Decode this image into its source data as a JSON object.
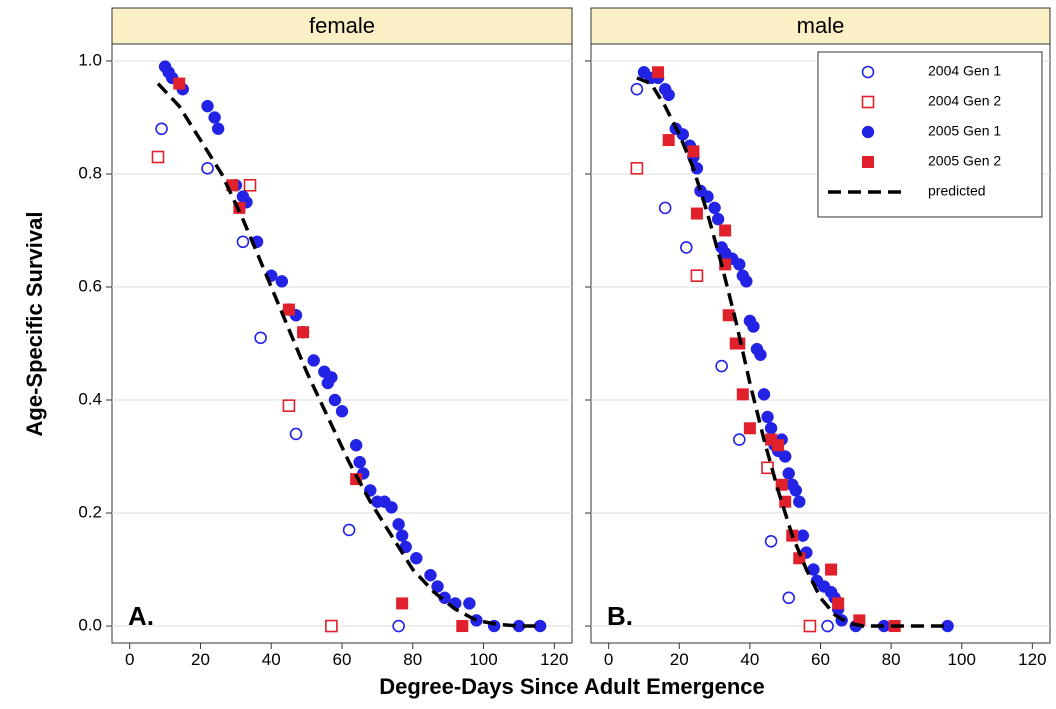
{
  "chart_data": {
    "type": "scatter",
    "ylabel": "Age-Specific Survival",
    "xlabel": "Degree-Days Since Adult Emergence",
    "xlim": [
      -5,
      125
    ],
    "ylim": [
      -0.03,
      1.03
    ],
    "x_ticks": [
      "0",
      "20",
      "40",
      "60",
      "80",
      "100",
      "120"
    ],
    "y_ticks": [
      "0.0",
      "0.2",
      "0.4",
      "0.6",
      "0.8",
      "1.0"
    ],
    "x_tick_values": [
      0,
      20,
      40,
      60,
      80,
      100,
      120
    ],
    "y_tick_values": [
      0,
      0.2,
      0.4,
      0.6,
      0.8,
      1.0
    ],
    "grid": "horizontal",
    "legend_position": "top-right",
    "legend": [
      {
        "label": "2004 Gen 1",
        "marker": "open-circle",
        "color": "#2323e6"
      },
      {
        "label": "2004 Gen 2",
        "marker": "open-square",
        "color": "#e0202a"
      },
      {
        "label": "2005 Gen 1",
        "marker": "filled-circle",
        "color": "#2323e6"
      },
      {
        "label": "2005 Gen 2",
        "marker": "filled-square",
        "color": "#e0202a"
      },
      {
        "label": "predicted",
        "marker": "dashed-line",
        "color": "#000000"
      }
    ],
    "colors": {
      "blue": "#2323e6",
      "red": "#e0202a",
      "strip_bg": "#fbf0c5"
    },
    "panels": [
      {
        "strip": "female",
        "label": "A.",
        "series": [
          {
            "name": "2004 Gen 1",
            "points": [
              [
                9,
                0.88
              ],
              [
                22,
                0.81
              ],
              [
                32,
                0.68
              ],
              [
                37,
                0.51
              ],
              [
                47,
                0.34
              ],
              [
                62,
                0.17
              ],
              [
                76,
                0.0
              ]
            ]
          },
          {
            "name": "2004 Gen 2",
            "points": [
              [
                8,
                0.83
              ],
              [
                34,
                0.78
              ],
              [
                45,
                0.39
              ],
              [
                57,
                0.0
              ]
            ]
          },
          {
            "name": "2005 Gen 1",
            "points": [
              [
                10,
                0.99
              ],
              [
                11,
                0.98
              ],
              [
                12,
                0.97
              ],
              [
                15,
                0.95
              ],
              [
                22,
                0.92
              ],
              [
                24,
                0.9
              ],
              [
                25,
                0.88
              ],
              [
                30,
                0.78
              ],
              [
                32,
                0.76
              ],
              [
                33,
                0.75
              ],
              [
                36,
                0.68
              ],
              [
                40,
                0.62
              ],
              [
                43,
                0.61
              ],
              [
                45,
                0.56
              ],
              [
                47,
                0.55
              ],
              [
                49,
                0.52
              ],
              [
                52,
                0.47
              ],
              [
                55,
                0.45
              ],
              [
                56,
                0.43
              ],
              [
                57,
                0.44
              ],
              [
                58,
                0.4
              ],
              [
                60,
                0.38
              ],
              [
                64,
                0.32
              ],
              [
                65,
                0.29
              ],
              [
                66,
                0.27
              ],
              [
                68,
                0.24
              ],
              [
                70,
                0.22
              ],
              [
                72,
                0.22
              ],
              [
                74,
                0.21
              ],
              [
                76,
                0.18
              ],
              [
                77,
                0.16
              ],
              [
                78,
                0.14
              ],
              [
                81,
                0.12
              ],
              [
                85,
                0.09
              ],
              [
                87,
                0.07
              ],
              [
                89,
                0.05
              ],
              [
                92,
                0.04
              ],
              [
                96,
                0.04
              ],
              [
                98,
                0.01
              ],
              [
                103,
                0.0
              ],
              [
                110,
                0.0
              ],
              [
                116,
                0.0
              ]
            ]
          },
          {
            "name": "2005 Gen 2",
            "points": [
              [
                14,
                0.96
              ],
              [
                29,
                0.78
              ],
              [
                31,
                0.74
              ],
              [
                45,
                0.56
              ],
              [
                49,
                0.52
              ],
              [
                64,
                0.26
              ],
              [
                77,
                0.04
              ],
              [
                94,
                0.0
              ]
            ]
          },
          {
            "name": "predicted",
            "points": [
              [
                8,
                0.96
              ],
              [
                14,
                0.92
              ],
              [
                20,
                0.86
              ],
              [
                26,
                0.8
              ],
              [
                32,
                0.72
              ],
              [
                38,
                0.63
              ],
              [
                44,
                0.54
              ],
              [
                50,
                0.45
              ],
              [
                56,
                0.37
              ],
              [
                62,
                0.29
              ],
              [
                68,
                0.22
              ],
              [
                74,
                0.16
              ],
              [
                80,
                0.1
              ],
              [
                86,
                0.06
              ],
              [
                92,
                0.03
              ],
              [
                98,
                0.01
              ],
              [
                104,
                0.003
              ],
              [
                110,
                0.0
              ],
              [
                116,
                0.0
              ]
            ]
          }
        ]
      },
      {
        "strip": "male",
        "label": "B.",
        "series": [
          {
            "name": "2004 Gen 1",
            "points": [
              [
                8,
                0.95
              ],
              [
                16,
                0.74
              ],
              [
                22,
                0.67
              ],
              [
                32,
                0.46
              ],
              [
                37,
                0.33
              ],
              [
                46,
                0.15
              ],
              [
                51,
                0.05
              ],
              [
                62,
                0.0
              ]
            ]
          },
          {
            "name": "2004 Gen 2",
            "points": [
              [
                8,
                0.81
              ],
              [
                25,
                0.62
              ],
              [
                45,
                0.28
              ],
              [
                57,
                0.0
              ]
            ]
          },
          {
            "name": "2005 Gen 1",
            "points": [
              [
                10,
                0.98
              ],
              [
                12,
                0.97
              ],
              [
                14,
                0.97
              ],
              [
                16,
                0.95
              ],
              [
                17,
                0.94
              ],
              [
                19,
                0.88
              ],
              [
                21,
                0.87
              ],
              [
                23,
                0.85
              ],
              [
                24,
                0.83
              ],
              [
                25,
                0.81
              ],
              [
                26,
                0.77
              ],
              [
                28,
                0.76
              ],
              [
                30,
                0.74
              ],
              [
                31,
                0.72
              ],
              [
                32,
                0.67
              ],
              [
                33,
                0.66
              ],
              [
                35,
                0.65
              ],
              [
                37,
                0.64
              ],
              [
                38,
                0.62
              ],
              [
                39,
                0.61
              ],
              [
                40,
                0.54
              ],
              [
                41,
                0.53
              ],
              [
                42,
                0.49
              ],
              [
                43,
                0.48
              ],
              [
                44,
                0.41
              ],
              [
                45,
                0.37
              ],
              [
                46,
                0.35
              ],
              [
                47,
                0.32
              ],
              [
                48,
                0.31
              ],
              [
                49,
                0.33
              ],
              [
                50,
                0.3
              ],
              [
                51,
                0.27
              ],
              [
                52,
                0.25
              ],
              [
                53,
                0.24
              ],
              [
                54,
                0.22
              ],
              [
                55,
                0.16
              ],
              [
                56,
                0.13
              ],
              [
                58,
                0.1
              ],
              [
                59,
                0.08
              ],
              [
                61,
                0.07
              ],
              [
                63,
                0.06
              ],
              [
                64,
                0.05
              ],
              [
                65,
                0.03
              ],
              [
                66,
                0.01
              ],
              [
                70,
                0.0
              ],
              [
                78,
                0.0
              ],
              [
                96,
                0.0
              ]
            ]
          },
          {
            "name": "2005 Gen 2",
            "points": [
              [
                14,
                0.98
              ],
              [
                17,
                0.86
              ],
              [
                24,
                0.84
              ],
              [
                25,
                0.73
              ],
              [
                33,
                0.7
              ],
              [
                33,
                0.64
              ],
              [
                34,
                0.55
              ],
              [
                36,
                0.5
              ],
              [
                37,
                0.5
              ],
              [
                38,
                0.41
              ],
              [
                40,
                0.35
              ],
              [
                46,
                0.33
              ],
              [
                48,
                0.32
              ],
              [
                49,
                0.25
              ],
              [
                50,
                0.22
              ],
              [
                52,
                0.16
              ],
              [
                54,
                0.12
              ],
              [
                63,
                0.1
              ],
              [
                65,
                0.04
              ],
              [
                71,
                0.01
              ],
              [
                81,
                0.0
              ]
            ]
          },
          {
            "name": "predicted",
            "points": [
              [
                8,
                0.97
              ],
              [
                12,
                0.96
              ],
              [
                16,
                0.92
              ],
              [
                20,
                0.87
              ],
              [
                24,
                0.81
              ],
              [
                28,
                0.73
              ],
              [
                32,
                0.64
              ],
              [
                36,
                0.54
              ],
              [
                40,
                0.43
              ],
              [
                44,
                0.33
              ],
              [
                48,
                0.24
              ],
              [
                52,
                0.16
              ],
              [
                56,
                0.1
              ],
              [
                60,
                0.05
              ],
              [
                64,
                0.02
              ],
              [
                68,
                0.005
              ],
              [
                72,
                0.0
              ],
              [
                80,
                0.0
              ],
              [
                96,
                0.0
              ]
            ]
          }
        ]
      }
    ]
  }
}
